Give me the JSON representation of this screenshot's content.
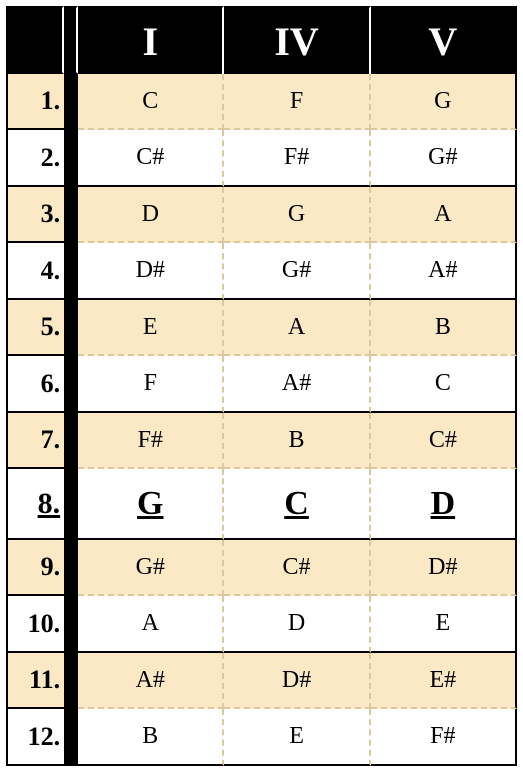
{
  "table": {
    "columns": [
      "I",
      "IV",
      "V"
    ],
    "header_bg": "#000000",
    "header_fg": "#ffffff",
    "header_fontsize": 40,
    "alt_row_bg": "#fbe9c6",
    "plain_row_bg": "#ffffff",
    "border_color": "#000000",
    "dashed_border_color": "#d8c9a0",
    "number_fontsize": 26,
    "data_fontsize": 24,
    "highlight_fontsize": 34,
    "rows": [
      {
        "num": "1.",
        "cells": [
          "C",
          "F",
          "G"
        ],
        "alt": true
      },
      {
        "num": "2.",
        "cells": [
          "C#",
          "F#",
          "G#"
        ],
        "alt": false
      },
      {
        "num": "3.",
        "cells": [
          "D",
          "G",
          "A"
        ],
        "alt": true
      },
      {
        "num": "4.",
        "cells": [
          "D#",
          "G#",
          "A#"
        ],
        "alt": false
      },
      {
        "num": "5.",
        "cells": [
          "E",
          "A",
          "B"
        ],
        "alt": true
      },
      {
        "num": "6.",
        "cells": [
          "F",
          "A#",
          "C"
        ],
        "alt": false
      },
      {
        "num": "7.",
        "cells": [
          "F#",
          "B",
          "C#"
        ],
        "alt": true
      },
      {
        "num": "8.",
        "cells": [
          "G",
          "C",
          "D"
        ],
        "alt": false,
        "highlight": true
      },
      {
        "num": "9.",
        "cells": [
          "G#",
          "C#",
          "D#"
        ],
        "alt": true
      },
      {
        "num": "10.",
        "cells": [
          "A",
          "D",
          "E"
        ],
        "alt": false
      },
      {
        "num": "11.",
        "cells": [
          "A#",
          "D#",
          "E#"
        ],
        "alt": true
      },
      {
        "num": "12.",
        "cells": [
          "B",
          "E",
          "F#"
        ],
        "alt": false
      }
    ]
  }
}
